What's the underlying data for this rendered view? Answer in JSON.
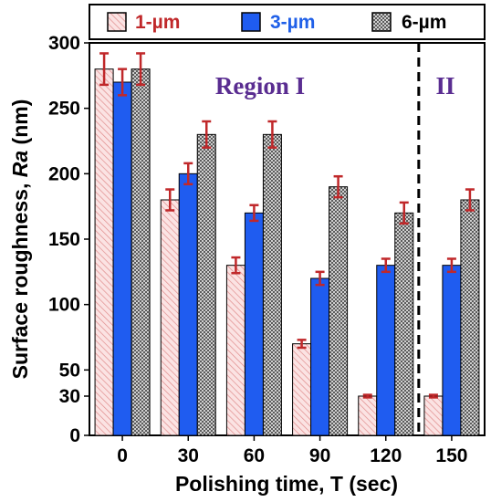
{
  "chart_data": {
    "type": "bar",
    "title": "",
    "xlabel": "Polishing time, T (sec)",
    "ylabel_prefix": "Surface roughness, ",
    "ylabel_italic": "Ra",
    "ylabel_suffix": " (nm)",
    "categories": [
      "0",
      "30",
      "60",
      "90",
      "120",
      "150"
    ],
    "ylim": [
      0,
      300
    ],
    "yticks": [
      0,
      30,
      50,
      100,
      150,
      200,
      250,
      300
    ],
    "series": [
      {
        "name": "1-µm",
        "values": [
          280,
          180,
          130,
          70,
          30,
          30
        ],
        "errors": [
          12,
          8,
          6,
          3,
          1,
          1
        ],
        "color": "#f4c2c2",
        "text_color": "#c0282a",
        "pattern": "diagonal"
      },
      {
        "name": "3-µm",
        "values": [
          270,
          200,
          170,
          120,
          130,
          130
        ],
        "errors": [
          10,
          8,
          6,
          5,
          5,
          5
        ],
        "color": "#1f5cf0",
        "text_color": "#2060e8",
        "pattern": "solid"
      },
      {
        "name": "6-µm",
        "values": [
          280,
          230,
          230,
          190,
          170,
          180
        ],
        "errors": [
          12,
          10,
          10,
          8,
          8,
          8
        ],
        "color": "#c8c8c8",
        "text_color": "#000000",
        "pattern": "crosshatch"
      }
    ],
    "annotations": [
      {
        "text": "Region I"
      },
      {
        "text": "II"
      }
    ],
    "divider_after_category": "120",
    "error_bar_color": "#c0282a",
    "legend_position": "top",
    "grid": false
  }
}
